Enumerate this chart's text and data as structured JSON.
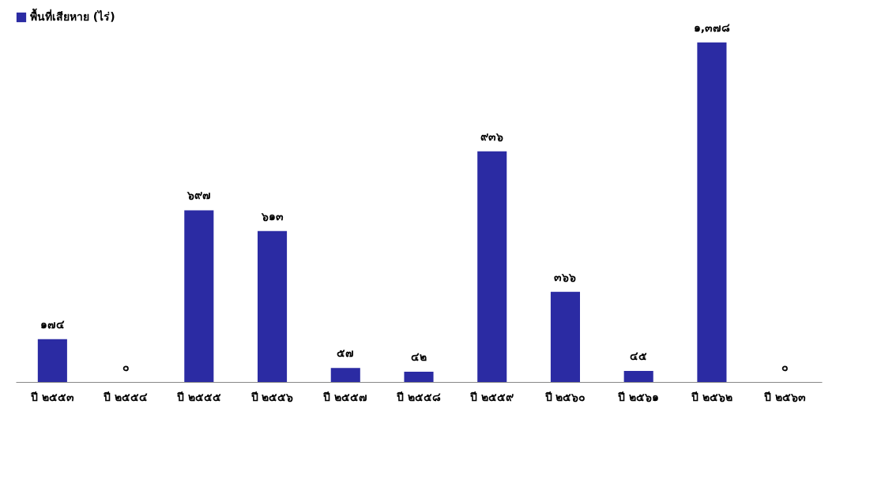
{
  "chart_data": {
    "type": "bar",
    "categories": [
      "ปี ๒๕๕๓",
      "ปี ๒๕๕๔",
      "ปี ๒๕๕๕",
      "ปี ๒๕๕๖",
      "ปี ๒๕๕๗",
      "ปี ๒๕๕๘",
      "ปี ๒๕๕๙",
      "ปี ๒๕๖๐",
      "ปี ๒๕๖๑",
      "ปี ๒๕๖๒",
      "ปี ๒๕๖๓"
    ],
    "series": [
      {
        "name": "พื้นที่เสียหาย (ไร่)",
        "color": "#2b2ba3",
        "values": [
          174,
          0,
          697,
          613,
          57,
          42,
          936,
          366,
          45,
          1378,
          0
        ],
        "value_labels": [
          "๑๗๔",
          "๐",
          "๖๙๗",
          "๖๑๓",
          "๕๗",
          "๔๒",
          "๙๓๖",
          "๓๖๖",
          "๔๕",
          "๑,๓๗๘",
          "๐"
        ]
      }
    ],
    "legend": "top",
    "grid": false
  }
}
